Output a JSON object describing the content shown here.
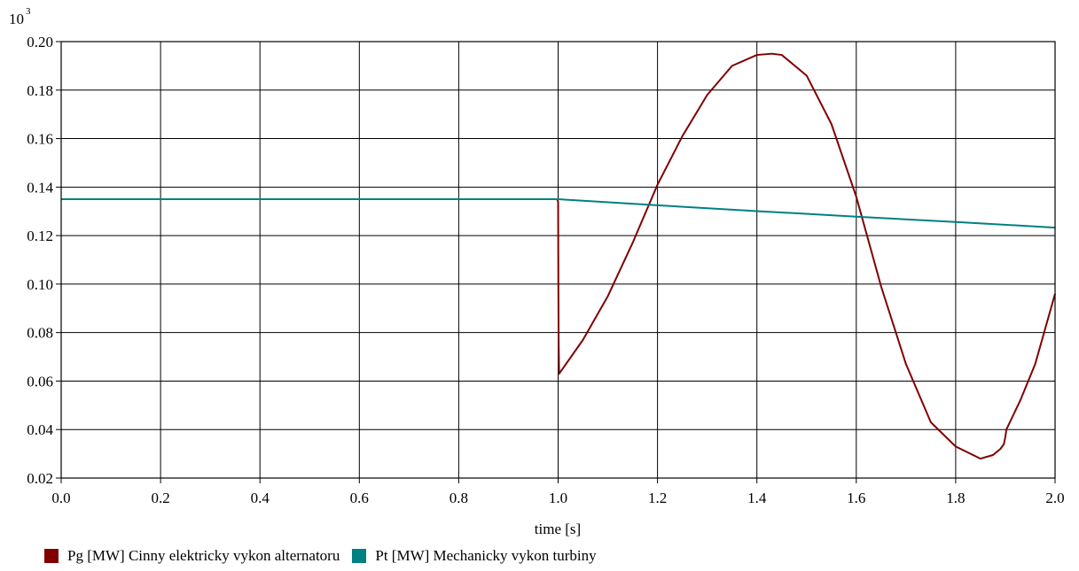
{
  "chart_data": {
    "type": "line",
    "y_multiplier_label": "10",
    "y_multiplier_exp": "3",
    "xlabel": "time [s]",
    "xlim": [
      0,
      2
    ],
    "ylim": [
      0.02,
      0.2
    ],
    "x_ticks": [
      "0.0",
      "0.2",
      "0.4",
      "0.6",
      "0.8",
      "1.0",
      "1.2",
      "1.4",
      "1.6",
      "1.8",
      "2.0"
    ],
    "y_ticks": [
      "0.02",
      "0.04",
      "0.06",
      "0.08",
      "0.10",
      "0.12",
      "0.14",
      "0.16",
      "0.18",
      "0.20"
    ],
    "grid": true,
    "legend_position": "bottom-left",
    "series": [
      {
        "name": "Pg [MW] Cinny elektricky vykon alternatoru",
        "color": "#800000",
        "points": [
          [
            0.0,
            0.135
          ],
          [
            0.998,
            0.135
          ],
          [
            1.0,
            0.134
          ],
          [
            1.0005,
            0.1
          ],
          [
            1.001,
            0.077
          ],
          [
            1.002,
            0.063
          ],
          [
            1.05,
            0.077
          ],
          [
            1.1,
            0.095
          ],
          [
            1.15,
            0.117
          ],
          [
            1.2,
            0.141
          ],
          [
            1.25,
            0.161
          ],
          [
            1.3,
            0.178
          ],
          [
            1.35,
            0.19
          ],
          [
            1.4,
            0.1945
          ],
          [
            1.43,
            0.195
          ],
          [
            1.45,
            0.1945
          ],
          [
            1.5,
            0.186
          ],
          [
            1.55,
            0.166
          ],
          [
            1.6,
            0.136
          ],
          [
            1.65,
            0.099
          ],
          [
            1.7,
            0.067
          ],
          [
            1.75,
            0.043
          ],
          [
            1.8,
            0.033
          ],
          [
            1.85,
            0.028
          ],
          [
            1.875,
            0.0295
          ],
          [
            1.89,
            0.032
          ],
          [
            1.897,
            0.034
          ],
          [
            1.9,
            0.037
          ],
          [
            1.902,
            0.04
          ],
          [
            1.93,
            0.052
          ],
          [
            1.96,
            0.067
          ],
          [
            2.0,
            0.096
          ]
        ]
      },
      {
        "name": "Pt [MW] Mechanicky vykon turbiny",
        "color": "#008080",
        "points": [
          [
            0.0,
            0.135
          ],
          [
            1.0,
            0.135
          ],
          [
            1.2,
            0.1325
          ],
          [
            1.4,
            0.1301
          ],
          [
            1.6,
            0.1278
          ],
          [
            1.8,
            0.1256
          ],
          [
            2.0,
            0.1233
          ]
        ]
      }
    ]
  }
}
